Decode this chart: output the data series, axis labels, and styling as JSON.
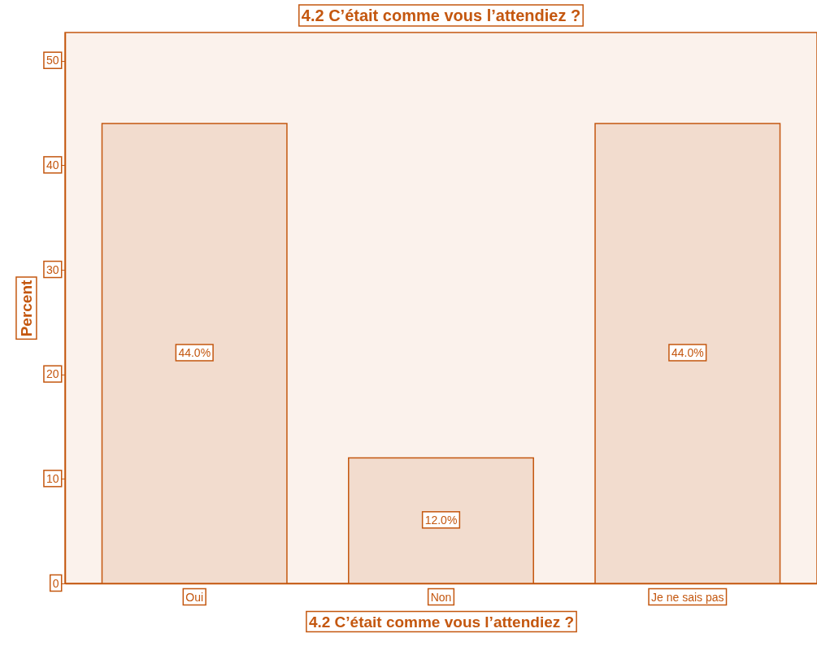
{
  "chart_data": {
    "type": "bar",
    "title": "4.2 C’était comme vous l’attendiez ?",
    "xlabel": "4.2 C’était comme vous l’attendiez ?",
    "ylabel": "Percent",
    "categories": [
      "Oui",
      "Non",
      "Je ne sais pas"
    ],
    "values": [
      44,
      12,
      44
    ],
    "value_labels": [
      "44.0%",
      "12.0%",
      "44.0%"
    ],
    "color": "#f2dcce",
    "ylim": [
      0,
      52.7
    ],
    "yticks": [
      0,
      10,
      20,
      30,
      40,
      50
    ],
    "grid": false
  }
}
